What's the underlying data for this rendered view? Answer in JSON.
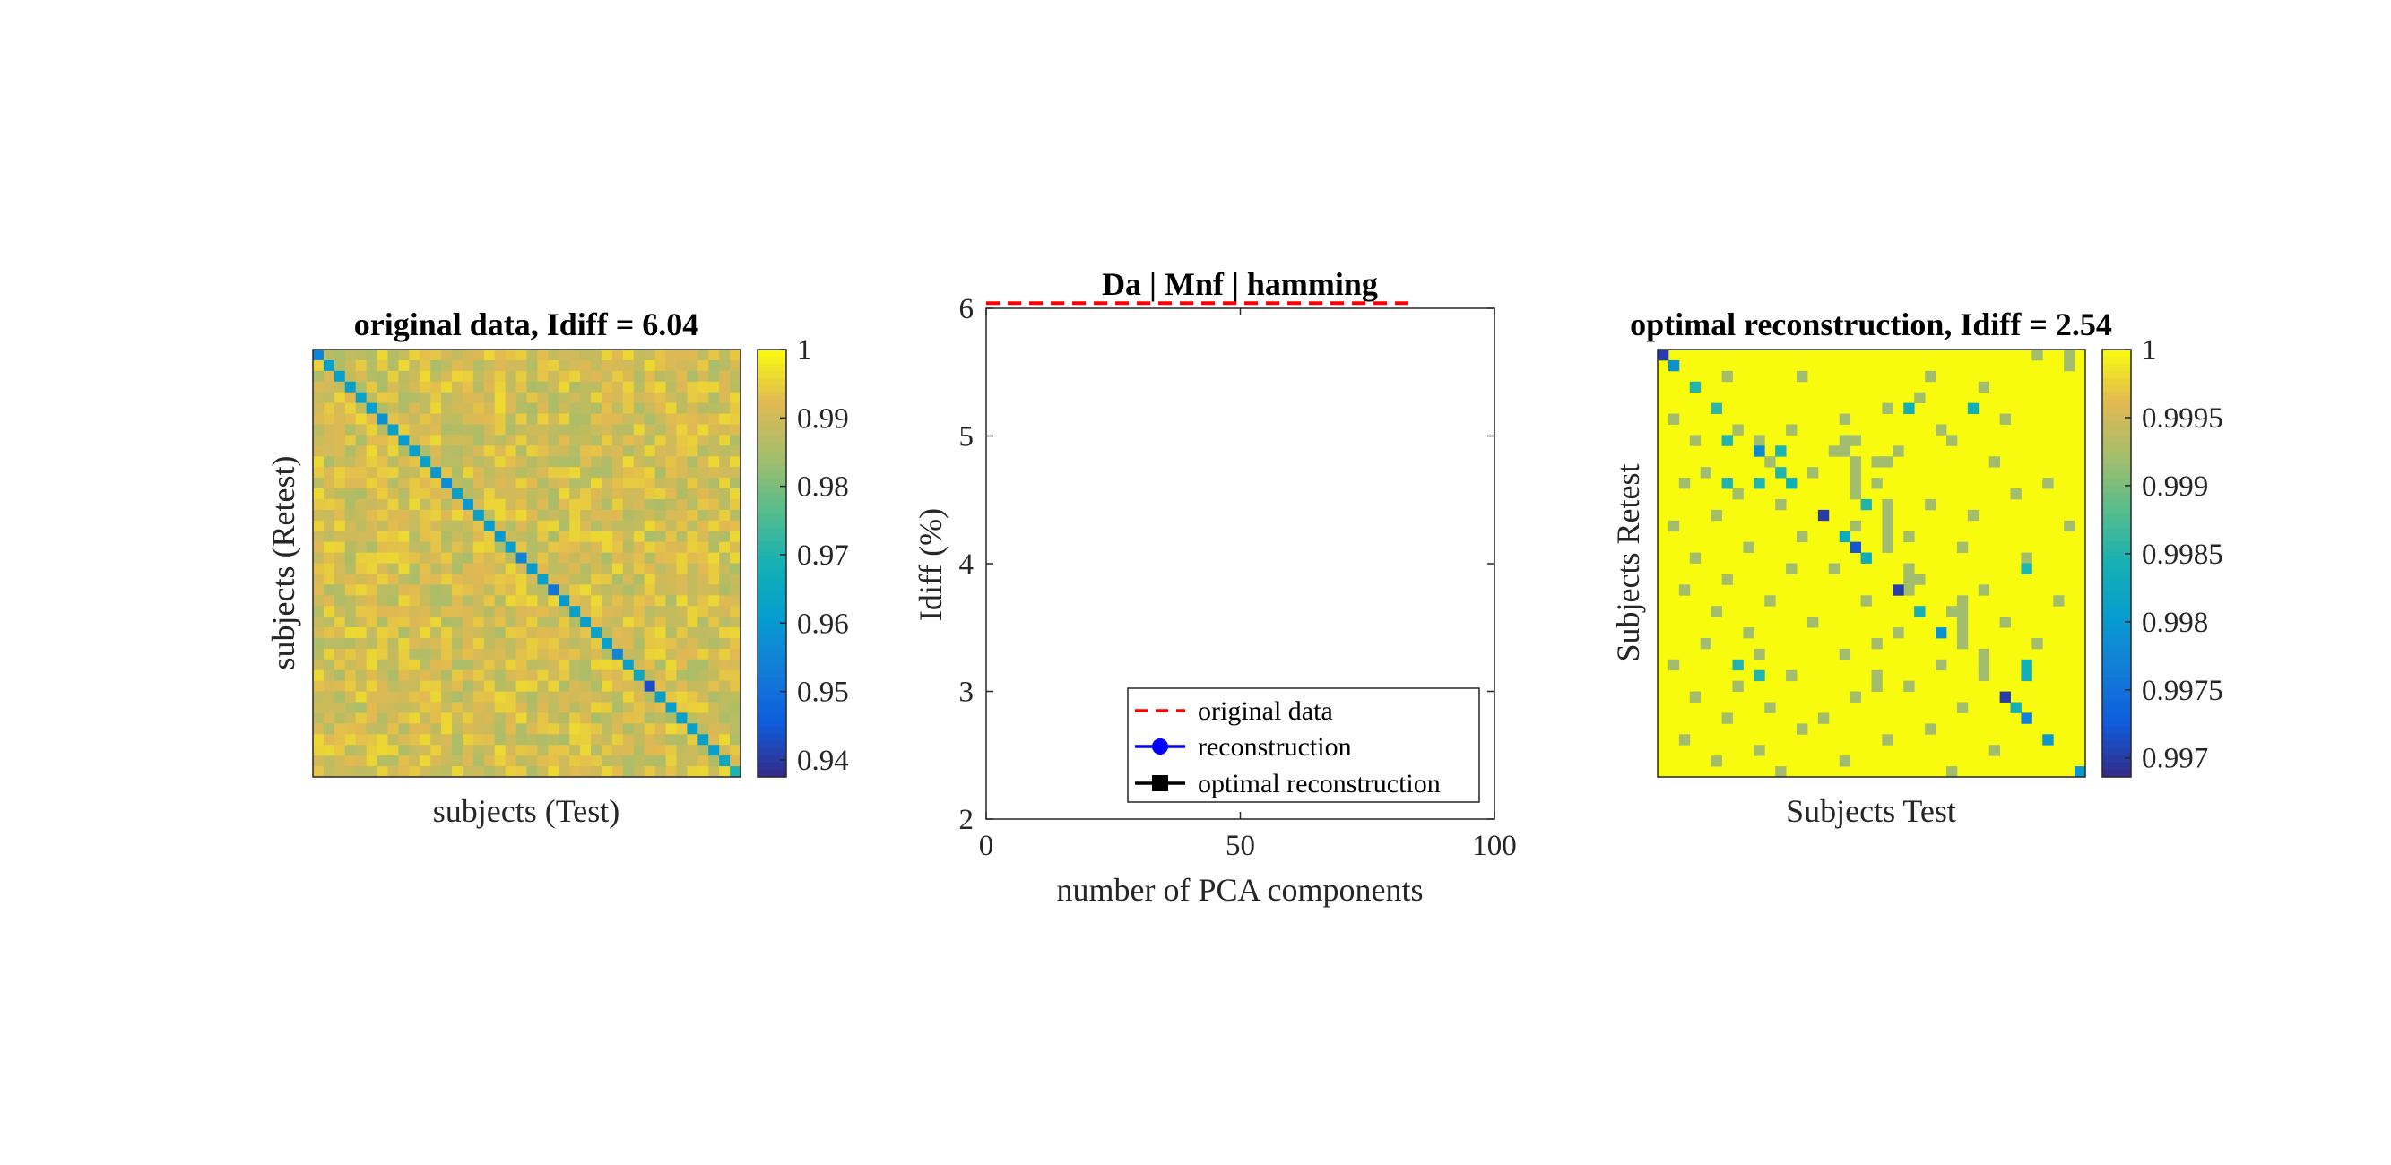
{
  "chart_data": [
    {
      "type": "heatmap",
      "title": "original data, Idiff = 6.04",
      "xlabel": "subjects (Test)",
      "ylabel": "subjects (Retest)",
      "n_subjects": 40,
      "colorbar": {
        "ticks": [
          "1",
          "0.99",
          "0.98",
          "0.97",
          "0.96",
          "0.95",
          "0.94"
        ],
        "values": [
          1,
          0.99,
          0.98,
          0.97,
          0.96,
          0.95,
          0.94
        ],
        "range": [
          0.9375,
          1.0
        ]
      },
      "offdiag_value_range": [
        0.985,
        0.996
      ],
      "diagonal_values": [
        0.955,
        0.962,
        0.962,
        0.962,
        0.963,
        0.962,
        0.958,
        0.962,
        0.961,
        0.962,
        0.962,
        0.96,
        0.957,
        0.962,
        0.96,
        0.962,
        0.962,
        0.96,
        0.962,
        0.955,
        0.961,
        0.962,
        0.951,
        0.96,
        0.962,
        0.962,
        0.963,
        0.962,
        0.956,
        0.962,
        0.965,
        0.943,
        0.962,
        0.962,
        0.962,
        0.962,
        0.962,
        0.962,
        0.965,
        0.97
      ]
    },
    {
      "type": "line",
      "title": "Da | Mnf | hamming",
      "xlabel": "number of PCA components",
      "ylabel": "Idiff (%)",
      "xlim": [
        0,
        100
      ],
      "ylim": [
        2,
        6
      ],
      "xticks": [
        "0",
        "50",
        "100"
      ],
      "yticks": [
        "2",
        "3",
        "4",
        "5",
        "6"
      ],
      "series": [
        {
          "name": "original data",
          "style": "dashed",
          "color": "#ff0000",
          "x": [
            0,
            83
          ],
          "y": [
            6.04,
            6.04
          ]
        },
        {
          "name": "reconstruction",
          "style": "line-circle",
          "color": "#0000ff",
          "x": [],
          "y": []
        },
        {
          "name": "optimal reconstruction",
          "style": "line-square",
          "color": "#000000",
          "x": [],
          "y": []
        }
      ],
      "legend": "bottom-right"
    },
    {
      "type": "heatmap",
      "title": "optimal reconstruction, Idiff = 2.54",
      "xlabel": "Subjects Test",
      "ylabel": "Subjects Retest",
      "n_subjects": 40,
      "colorbar": {
        "ticks": [
          "1",
          "0.9995",
          "0.999",
          "0.9985",
          "0.998",
          "0.9975",
          "0.997"
        ],
        "values": [
          1,
          0.9995,
          0.999,
          0.9985,
          0.998,
          0.9975,
          0.997
        ],
        "range": [
          0.99686,
          1.0
        ]
      },
      "background_value": 1.0,
      "mid_value": 0.9992,
      "cells": [
        [
          0,
          0,
          0.997
        ],
        [
          1,
          1,
          0.9979
        ],
        [
          3,
          3,
          0.9985
        ],
        [
          5,
          5,
          0.9986
        ],
        [
          11,
          11,
          0.9985
        ],
        [
          9,
          9,
          0.9978
        ],
        [
          12,
          12,
          0.9984
        ],
        [
          15,
          15,
          0.997
        ],
        [
          18,
          18,
          0.9972
        ],
        [
          17,
          17,
          0.9983
        ],
        [
          19,
          19,
          0.9983
        ],
        [
          22,
          22,
          0.997
        ],
        [
          24,
          24,
          0.9984
        ],
        [
          26,
          26,
          0.9979
        ],
        [
          32,
          32,
          0.997
        ],
        [
          33,
          33,
          0.9984
        ],
        [
          34,
          34,
          0.9977
        ],
        [
          36,
          36,
          0.998
        ],
        [
          39,
          39,
          0.998
        ],
        [
          5,
          29,
          0.9984
        ],
        [
          5,
          23,
          0.9984
        ],
        [
          9,
          11,
          0.9985
        ],
        [
          8,
          6,
          0.9985
        ],
        [
          14,
          19,
          0.9985
        ],
        [
          12,
          6,
          0.9985
        ],
        [
          12,
          9,
          0.9985
        ],
        [
          30,
          34,
          0.9984
        ],
        [
          29,
          7,
          0.9985
        ],
        [
          30,
          9,
          0.9985
        ],
        [
          29,
          34,
          0.9984
        ],
        [
          20,
          34,
          0.9985
        ]
      ],
      "mid_cells": [
        [
          2,
          6
        ],
        [
          2,
          13
        ],
        [
          2,
          25
        ],
        [
          0,
          35
        ],
        [
          1,
          38
        ],
        [
          0,
          38
        ],
        [
          3,
          30
        ],
        [
          4,
          24
        ],
        [
          5,
          21
        ],
        [
          6,
          1
        ],
        [
          6,
          17
        ],
        [
          6,
          32
        ],
        [
          7,
          7
        ],
        [
          7,
          26
        ],
        [
          7,
          12
        ],
        [
          8,
          3
        ],
        [
          8,
          9
        ],
        [
          8,
          27
        ],
        [
          9,
          17
        ],
        [
          9,
          22
        ],
        [
          10,
          10
        ],
        [
          10,
          31
        ],
        [
          11,
          4
        ],
        [
          11,
          14
        ],
        [
          12,
          2
        ],
        [
          12,
          20
        ],
        [
          12,
          36
        ],
        [
          13,
          7
        ],
        [
          13,
          33
        ],
        [
          14,
          11
        ],
        [
          14,
          25
        ],
        [
          15,
          5
        ],
        [
          15,
          29
        ],
        [
          16,
          1
        ],
        [
          16,
          18
        ],
        [
          16,
          38
        ],
        [
          17,
          13
        ],
        [
          17,
          23
        ],
        [
          18,
          8
        ],
        [
          18,
          28
        ],
        [
          19,
          3
        ],
        [
          19,
          34
        ],
        [
          20,
          12
        ],
        [
          20,
          16
        ],
        [
          21,
          6
        ],
        [
          21,
          24
        ],
        [
          22,
          2
        ],
        [
          22,
          30
        ],
        [
          23,
          10
        ],
        [
          23,
          19
        ],
        [
          23,
          37
        ],
        [
          24,
          5
        ],
        [
          24,
          27
        ],
        [
          25,
          14
        ],
        [
          25,
          32
        ],
        [
          26,
          8
        ],
        [
          26,
          22
        ],
        [
          27,
          4
        ],
        [
          27,
          20
        ],
        [
          27,
          35
        ],
        [
          28,
          9
        ],
        [
          28,
          17
        ],
        [
          29,
          1
        ],
        [
          29,
          26
        ],
        [
          30,
          12
        ],
        [
          30,
          30
        ],
        [
          31,
          7
        ],
        [
          31,
          23
        ],
        [
          32,
          3
        ],
        [
          32,
          18
        ],
        [
          33,
          10
        ],
        [
          33,
          28
        ],
        [
          34,
          6
        ],
        [
          34,
          15
        ],
        [
          35,
          13
        ],
        [
          35,
          25
        ],
        [
          36,
          2
        ],
        [
          36,
          21
        ],
        [
          37,
          9
        ],
        [
          37,
          31
        ],
        [
          38,
          5
        ],
        [
          38,
          17
        ],
        [
          39,
          11
        ],
        [
          39,
          27
        ],
        [
          14,
          21
        ],
        [
          15,
          21
        ],
        [
          16,
          21
        ],
        [
          17,
          21
        ],
        [
          18,
          21
        ],
        [
          23,
          28
        ],
        [
          24,
          28
        ],
        [
          25,
          28
        ],
        [
          26,
          28
        ],
        [
          27,
          28
        ],
        [
          10,
          18
        ],
        [
          11,
          18
        ],
        [
          12,
          18
        ],
        [
          13,
          18
        ],
        [
          20,
          23
        ],
        [
          21,
          23
        ],
        [
          22,
          23
        ],
        [
          8,
          17
        ],
        [
          8,
          18
        ],
        [
          9,
          16
        ],
        [
          10,
          20
        ],
        [
          10,
          21
        ],
        [
          28,
          30
        ],
        [
          29,
          30
        ],
        [
          30,
          20
        ],
        [
          31,
          20
        ]
      ]
    }
  ]
}
